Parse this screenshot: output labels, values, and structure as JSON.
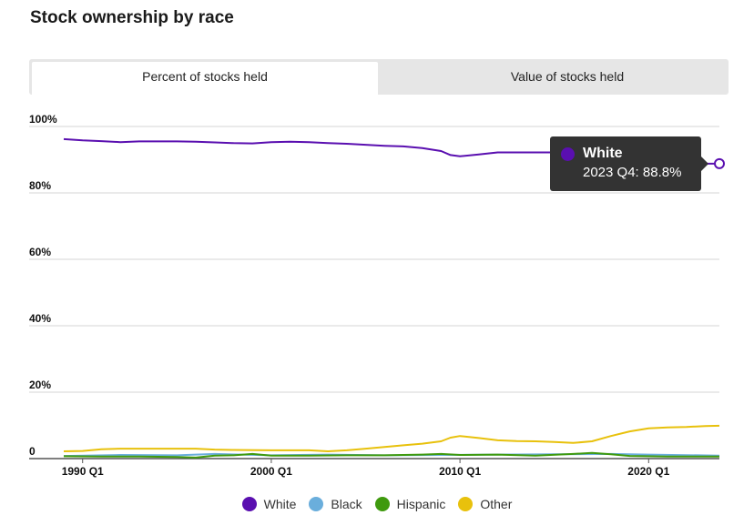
{
  "title": "Stock ownership by race",
  "tabs": [
    {
      "label": "Percent of stocks held",
      "active": true
    },
    {
      "label": "Value of stocks held",
      "active": false
    }
  ],
  "tooltip": {
    "series": "White",
    "text": "2023 Q4: 88.8%",
    "color": "#5a0fb0"
  },
  "chart_data": {
    "type": "line",
    "title": "Stock ownership by race",
    "xlabel": "",
    "ylabel": "",
    "ylim": [
      0,
      100
    ],
    "yticks": [
      {
        "value": 0,
        "label": "0"
      },
      {
        "value": 20,
        "label": "20%"
      },
      {
        "value": 40,
        "label": "40%"
      },
      {
        "value": 60,
        "label": "60%"
      },
      {
        "value": 80,
        "label": "80%"
      },
      {
        "value": 100,
        "label": "100%"
      }
    ],
    "xticks": [
      {
        "value": 1990,
        "label": "1990 Q1"
      },
      {
        "value": 2000,
        "label": "2000 Q1"
      },
      {
        "value": 2010,
        "label": "2010 Q1"
      },
      {
        "value": 2020,
        "label": "2020 Q1"
      }
    ],
    "xlim": [
      1989,
      2023.75
    ],
    "grid": true,
    "legend": "bottom",
    "series": [
      {
        "name": "White",
        "color": "#5a0fb0",
        "points": [
          [
            1989,
            96.2
          ],
          [
            1990,
            95.8
          ],
          [
            1991,
            95.6
          ],
          [
            1992,
            95.3
          ],
          [
            1993,
            95.5
          ],
          [
            1994,
            95.5
          ],
          [
            1995,
            95.5
          ],
          [
            1996,
            95.4
          ],
          [
            1997,
            95.2
          ],
          [
            1998,
            95.0
          ],
          [
            1999,
            94.9
          ],
          [
            2000,
            95.3
          ],
          [
            2001,
            95.4
          ],
          [
            2002,
            95.3
          ],
          [
            2003,
            95.0
          ],
          [
            2004,
            94.8
          ],
          [
            2005,
            94.5
          ],
          [
            2006,
            94.2
          ],
          [
            2007,
            94.0
          ],
          [
            2008,
            93.5
          ],
          [
            2009,
            92.6
          ],
          [
            2009.5,
            91.4
          ],
          [
            2010,
            91.0
          ],
          [
            2011,
            91.6
          ],
          [
            2012,
            92.2
          ],
          [
            2013,
            92.2
          ],
          [
            2014,
            92.2
          ],
          [
            2015,
            92.2
          ],
          [
            2016,
            90.0
          ],
          [
            2017,
            89.5
          ],
          [
            2018,
            89.2
          ],
          [
            2019,
            89.0
          ],
          [
            2020,
            88.9
          ],
          [
            2021,
            88.9
          ],
          [
            2022,
            88.8
          ],
          [
            2023.75,
            88.8
          ]
        ]
      },
      {
        "name": "Black",
        "color": "#6aaedc",
        "points": [
          [
            1989,
            0.8
          ],
          [
            1992,
            1.1
          ],
          [
            1995,
            1.0
          ],
          [
            1997,
            1.4
          ],
          [
            2000,
            1.0
          ],
          [
            2003,
            1.2
          ],
          [
            2006,
            1.0
          ],
          [
            2009,
            1.1
          ],
          [
            2012,
            1.2
          ],
          [
            2015,
            1.3
          ],
          [
            2018,
            1.4
          ],
          [
            2020,
            1.2
          ],
          [
            2023.75,
            0.9
          ]
        ]
      },
      {
        "name": "Hispanic",
        "color": "#3f9a0e",
        "points": [
          [
            1989,
            0.7
          ],
          [
            1991,
            0.6
          ],
          [
            1993,
            0.6
          ],
          [
            1995,
            0.5
          ],
          [
            1996,
            0.3
          ],
          [
            1997,
            0.9
          ],
          [
            1998,
            1.0
          ],
          [
            1999,
            1.4
          ],
          [
            2000,
            0.9
          ],
          [
            2002,
            0.9
          ],
          [
            2004,
            1.0
          ],
          [
            2006,
            1.0
          ],
          [
            2008,
            1.2
          ],
          [
            2009,
            1.4
          ],
          [
            2010,
            1.1
          ],
          [
            2012,
            1.2
          ],
          [
            2014,
            0.9
          ],
          [
            2016,
            1.4
          ],
          [
            2017,
            1.7
          ],
          [
            2018,
            1.3
          ],
          [
            2019,
            0.8
          ],
          [
            2021,
            0.6
          ],
          [
            2023.75,
            0.6
          ]
        ]
      },
      {
        "name": "Other",
        "color": "#e8c10c",
        "points": [
          [
            1989,
            2.2
          ],
          [
            1990,
            2.3
          ],
          [
            1991,
            2.8
          ],
          [
            1992,
            3.0
          ],
          [
            1994,
            3.0
          ],
          [
            1996,
            3.0
          ],
          [
            1997,
            2.7
          ],
          [
            1998,
            2.6
          ],
          [
            2000,
            2.5
          ],
          [
            2002,
            2.5
          ],
          [
            2003,
            2.2
          ],
          [
            2004,
            2.5
          ],
          [
            2005,
            3.0
          ],
          [
            2006,
            3.5
          ],
          [
            2007,
            4.0
          ],
          [
            2008,
            4.5
          ],
          [
            2009,
            5.2
          ],
          [
            2009.5,
            6.3
          ],
          [
            2010,
            6.8
          ],
          [
            2011,
            6.2
          ],
          [
            2012,
            5.5
          ],
          [
            2013,
            5.3
          ],
          [
            2014,
            5.2
          ],
          [
            2015,
            5.0
          ],
          [
            2016,
            4.7
          ],
          [
            2017,
            5.2
          ],
          [
            2018,
            6.8
          ],
          [
            2019,
            8.2
          ],
          [
            2020,
            9.1
          ],
          [
            2021,
            9.4
          ],
          [
            2022,
            9.5
          ],
          [
            2023,
            9.8
          ],
          [
            2023.75,
            9.9
          ]
        ]
      }
    ]
  }
}
